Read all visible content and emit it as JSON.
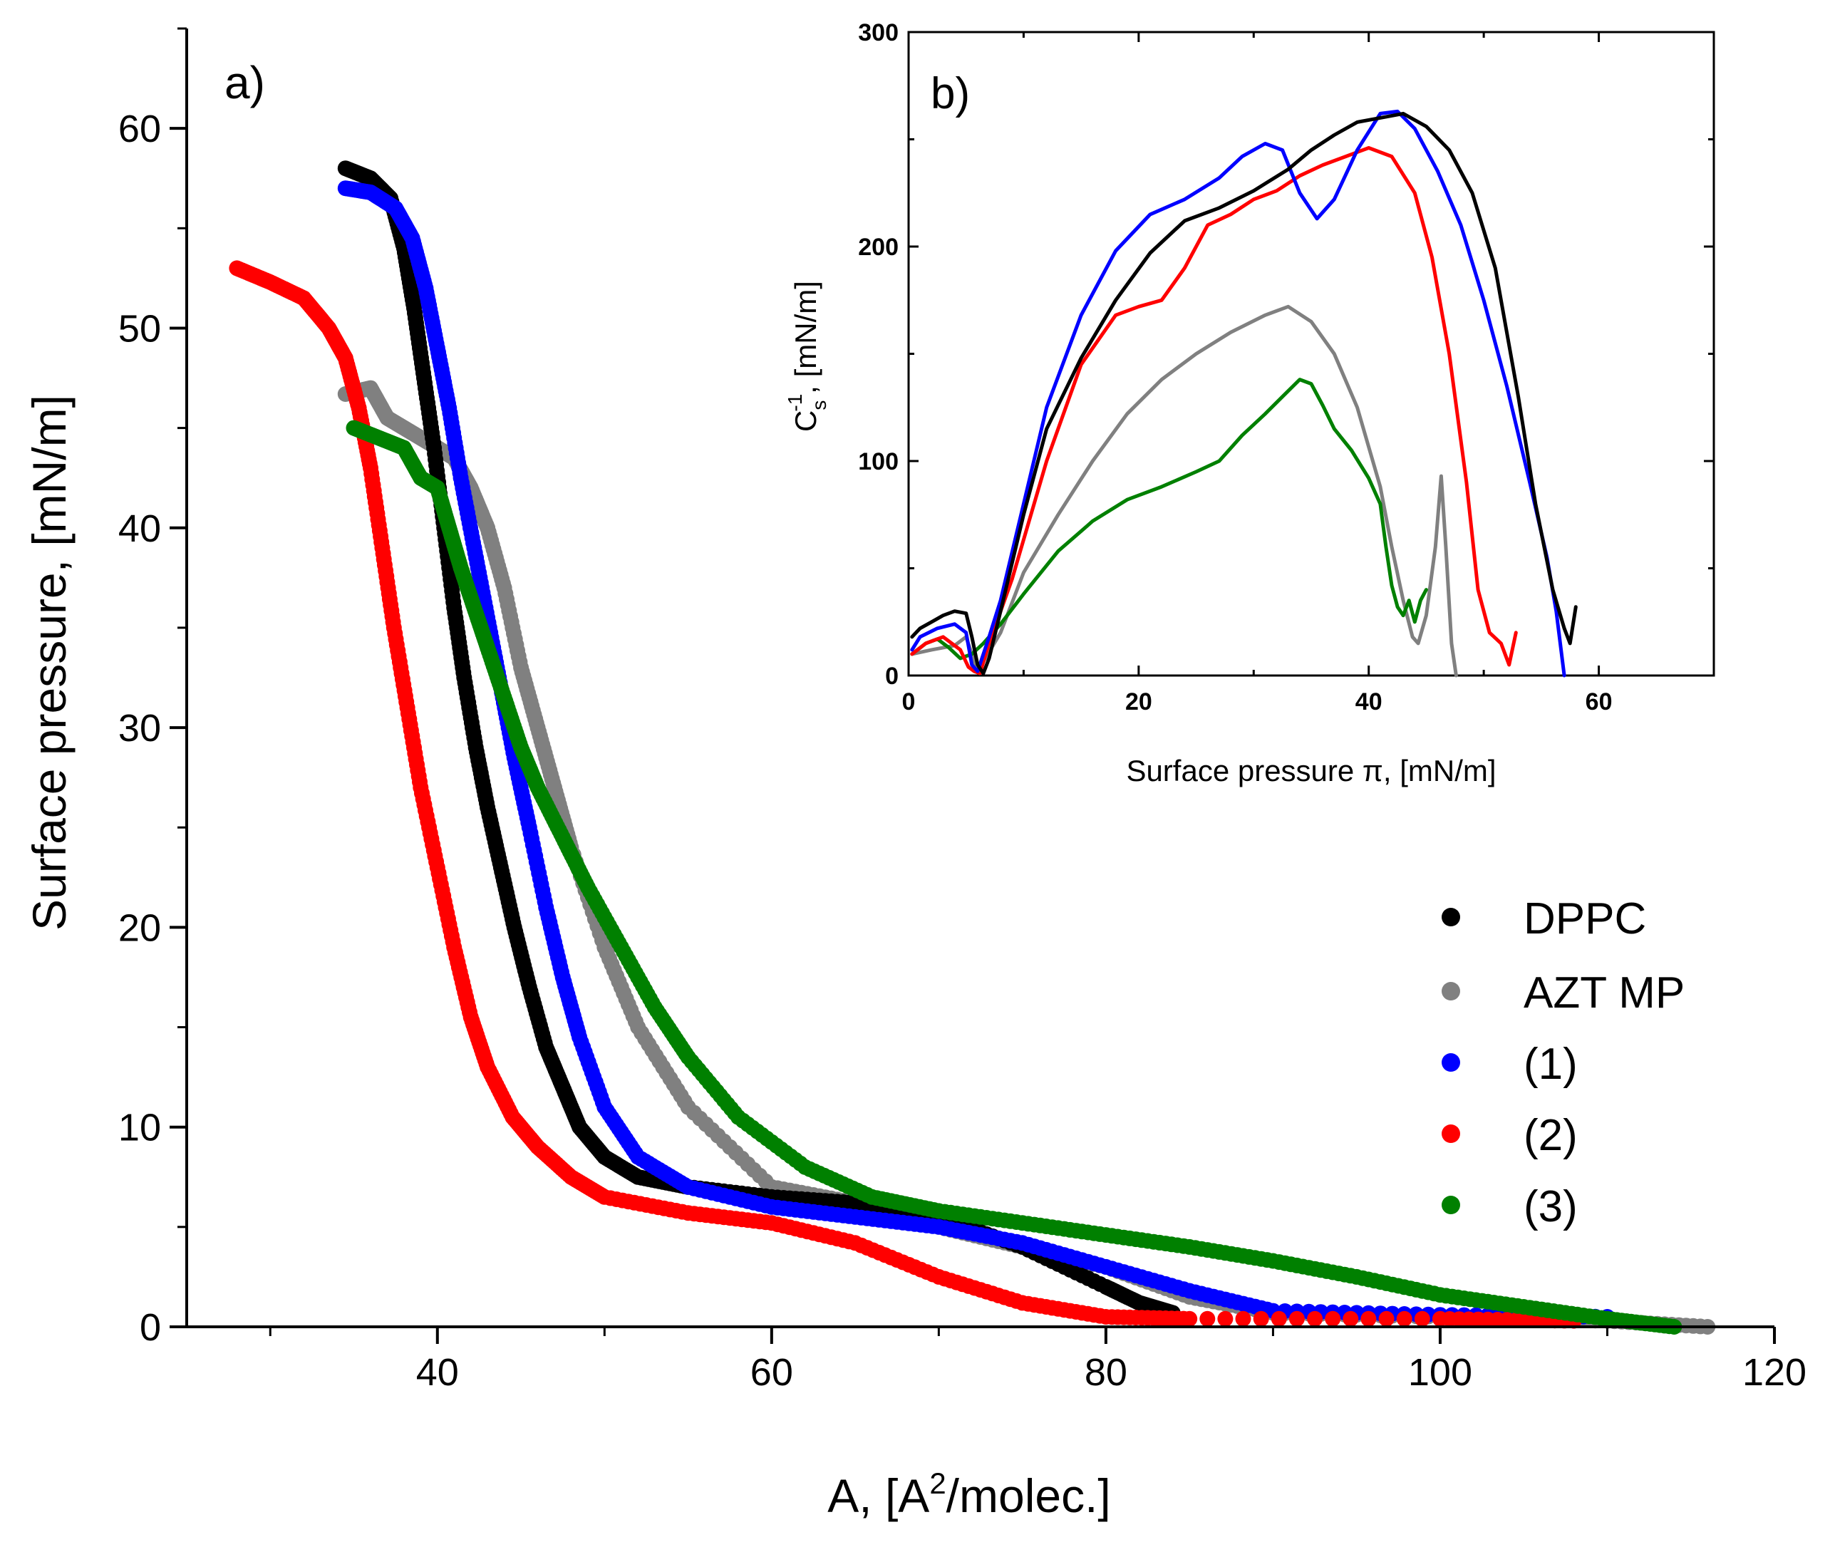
{
  "colors": {
    "DPPC": "#000000",
    "AZT MP": "#808080",
    "(1)": "#0000ff",
    "(2)": "#ff0000",
    "(3)": "#008000"
  },
  "chart_data": [
    {
      "id": "main",
      "type": "scatter",
      "panel_label": "a)",
      "xlabel": "A, [A²/molec.]",
      "xlabel_base": "A, [A",
      "xlabel_sup": "2",
      "xlabel_tail": "/molec.]",
      "ylabel": "Surface pressure, [mN/m]",
      "xlim": [
        25,
        120
      ],
      "ylim": [
        0,
        65
      ],
      "xticks": [
        40,
        60,
        80,
        100,
        120
      ],
      "xtick_labels": [
        "40",
        "60",
        "80",
        "100",
        "120"
      ],
      "yticks": [
        0,
        10,
        20,
        30,
        40,
        50,
        60
      ],
      "ytick_labels": [
        "0",
        "10",
        "20",
        "30",
        "40",
        "50",
        "60"
      ],
      "legend_position": "right-middle",
      "series": [
        {
          "name": "DPPC",
          "color": "#000000",
          "x": [
            34.5,
            36,
            37.2,
            38,
            38.6,
            39.2,
            39.8,
            40.4,
            41,
            41.6,
            42.3,
            43,
            43.8,
            44.6,
            45.5,
            46.5,
            47.5,
            48.5,
            50,
            52,
            55,
            60,
            65,
            70,
            75,
            80,
            82,
            84
          ],
          "y": [
            58,
            57.5,
            56.5,
            54,
            51,
            47.5,
            44,
            40,
            36,
            32.5,
            29,
            26,
            23,
            20,
            17,
            14,
            12,
            10,
            8.5,
            7.5,
            7,
            6.5,
            6.2,
            5.5,
            4,
            2,
            1.2,
            0.7
          ]
        },
        {
          "name": "AZT MP",
          "color": "#808080",
          "x": [
            34.5,
            36,
            37,
            38,
            39,
            40,
            41,
            42,
            43,
            44,
            45,
            46,
            47,
            48,
            50,
            52,
            55,
            60,
            65,
            70,
            75,
            80,
            85,
            90,
            100,
            110,
            116
          ],
          "y": [
            46.7,
            47,
            45.5,
            45,
            44.5,
            44,
            43.5,
            42,
            40,
            37,
            33,
            30,
            27,
            24,
            19,
            15,
            11,
            7,
            6.2,
            5,
            4,
            3,
            1.5,
            0.7,
            0.5,
            0.3,
            0
          ]
        },
        {
          "name": "(1)",
          "color": "#0000ff",
          "x": [
            34.5,
            36,
            37.5,
            38.5,
            39.3,
            40,
            40.7,
            41.4,
            42.2,
            43,
            43.8,
            44.6,
            45.5,
            46.5,
            47.5,
            48.5,
            50,
            52,
            55,
            60,
            65,
            70,
            75,
            80,
            85,
            90,
            100,
            110
          ],
          "y": [
            57,
            56.8,
            56,
            54.5,
            52,
            49,
            46,
            42.5,
            39,
            35.5,
            32,
            28.5,
            25,
            21,
            17.5,
            14.5,
            11,
            8.5,
            7,
            6,
            5.5,
            5,
            4.2,
            3,
            1.8,
            0.8,
            0.6,
            0.5
          ]
        },
        {
          "name": "(2)",
          "color": "#ff0000",
          "x": [
            28,
            30,
            32,
            33.5,
            34.5,
            35.3,
            36,
            36.7,
            37.4,
            38.2,
            39,
            40,
            41,
            42,
            43,
            44.5,
            46,
            48,
            50,
            55,
            60,
            65,
            70,
            75,
            80,
            85,
            100,
            108
          ],
          "y": [
            53,
            52.3,
            51.5,
            50,
            48.5,
            46,
            43,
            39,
            35,
            31,
            27,
            23,
            19,
            15.5,
            13,
            10.5,
            9,
            7.5,
            6.5,
            5.7,
            5.2,
            4.2,
            2.5,
            1.2,
            0.5,
            0.4,
            0.4,
            0.3
          ]
        },
        {
          "name": "(3)",
          "color": "#008000",
          "x": [
            35,
            36.5,
            38,
            39,
            40,
            40.7,
            41.4,
            42.2,
            43,
            44,
            45,
            46,
            47.5,
            49,
            51,
            53,
            55,
            58,
            62,
            66,
            70,
            75,
            80,
            85,
            90,
            95,
            100,
            105,
            110,
            114
          ],
          "y": [
            45,
            44.5,
            44,
            42.5,
            42,
            40,
            38,
            36,
            34,
            31.5,
            29,
            27,
            24.5,
            22,
            19,
            16,
            13.5,
            10.5,
            8,
            6.5,
            5.8,
            5.2,
            4.6,
            4,
            3.3,
            2.5,
            1.6,
            1,
            0.4,
            0
          ]
        }
      ]
    },
    {
      "id": "inset",
      "type": "line",
      "panel_label": "b)",
      "xlabel": "Surface pressure π, [mN/m]",
      "ylabel": "C_s^-1, [mN/m]",
      "ylabel_base": "C",
      "ylabel_sup": "-1",
      "ylabel_sub": "s",
      "ylabel_tail": ", [mN/m]",
      "xlim": [
        0,
        70
      ],
      "ylim": [
        0,
        300
      ],
      "xticks": [
        0,
        20,
        40,
        60
      ],
      "xtick_labels": [
        "0",
        "20",
        "40",
        "60"
      ],
      "yticks": [
        0,
        100,
        200,
        300
      ],
      "ytick_labels": [
        "0",
        "100",
        "200",
        "300"
      ],
      "series": [
        {
          "name": "DPPC",
          "color": "#000000",
          "x": [
            0.3,
            1,
            2,
            3,
            4,
            5,
            5.5,
            6,
            6.5,
            7,
            8,
            10,
            12,
            15,
            18,
            21,
            24,
            27,
            30,
            33,
            35,
            37,
            39,
            41,
            43,
            45,
            47,
            49,
            51,
            53,
            54.5,
            56,
            57,
            57.5,
            58
          ],
          "y": [
            18,
            22,
            25,
            28,
            30,
            29,
            18,
            5,
            1,
            8,
            30,
            75,
            115,
            148,
            175,
            197,
            212,
            218,
            226,
            236,
            245,
            252,
            258,
            260,
            262,
            256,
            245,
            225,
            190,
            130,
            80,
            40,
            22,
            15,
            32
          ]
        },
        {
          "name": "AZT MP",
          "color": "#808080",
          "x": [
            0.3,
            2,
            4,
            5,
            6,
            8,
            10,
            13,
            16,
            19,
            22,
            25,
            28,
            31,
            33,
            35,
            37,
            39,
            41,
            42,
            43,
            43.8,
            44.3,
            45,
            45.8,
            46.3,
            46.7,
            47.2,
            47.6
          ],
          "y": [
            10,
            12,
            14,
            18,
            2,
            20,
            48,
            75,
            100,
            122,
            138,
            150,
            160,
            168,
            172,
            165,
            150,
            125,
            88,
            60,
            35,
            18,
            15,
            28,
            60,
            93,
            60,
            15,
            0
          ]
        },
        {
          "name": "(1)",
          "color": "#0000ff",
          "x": [
            0.3,
            1,
            2.5,
            4,
            5,
            5.5,
            6,
            7,
            8,
            10,
            12,
            15,
            18,
            21,
            24,
            27,
            29,
            31,
            32.5,
            34,
            35.5,
            37,
            39,
            41,
            42.5,
            44,
            46,
            48,
            50,
            52,
            54,
            55.5,
            56.3,
            57
          ],
          "y": [
            12,
            18,
            22,
            24,
            20,
            5,
            2,
            18,
            35,
            80,
            125,
            168,
            198,
            215,
            222,
            232,
            242,
            248,
            245,
            225,
            213,
            222,
            245,
            262,
            263,
            255,
            235,
            210,
            175,
            135,
            90,
            55,
            30,
            0
          ]
        },
        {
          "name": "(2)",
          "color": "#ff0000",
          "x": [
            0.3,
            1.5,
            3,
            4.5,
            5.2,
            5.7,
            6.2,
            7,
            9,
            12,
            15,
            18,
            20,
            22,
            24,
            26,
            28,
            30,
            32,
            34,
            36,
            38,
            40,
            42,
            44,
            45.5,
            47,
            48.5,
            49.5,
            50.5,
            51.5,
            52.2,
            52.8
          ],
          "y": [
            10,
            15,
            18,
            12,
            4,
            2,
            1,
            15,
            45,
            100,
            145,
            168,
            172,
            175,
            190,
            210,
            215,
            222,
            226,
            233,
            238,
            242,
            246,
            242,
            225,
            195,
            150,
            90,
            40,
            20,
            15,
            5,
            20
          ]
        },
        {
          "name": "(3)",
          "color": "#008000",
          "x": [
            0.3,
            1.5,
            2.5,
            3.5,
            4.5,
            5.5,
            6.5,
            8,
            10,
            13,
            16,
            19,
            22,
            25,
            27,
            29,
            31,
            32.5,
            34,
            35,
            36,
            37,
            38.5,
            40,
            41,
            41.5,
            42,
            42.5,
            43,
            43.5,
            44,
            44.5,
            45
          ],
          "y": [
            10,
            15,
            17,
            13,
            8,
            10,
            15,
            24,
            38,
            58,
            72,
            82,
            88,
            95,
            100,
            112,
            122,
            130,
            138,
            136,
            126,
            115,
            105,
            92,
            80,
            60,
            42,
            32,
            28,
            35,
            25,
            35,
            40
          ]
        }
      ]
    }
  ]
}
